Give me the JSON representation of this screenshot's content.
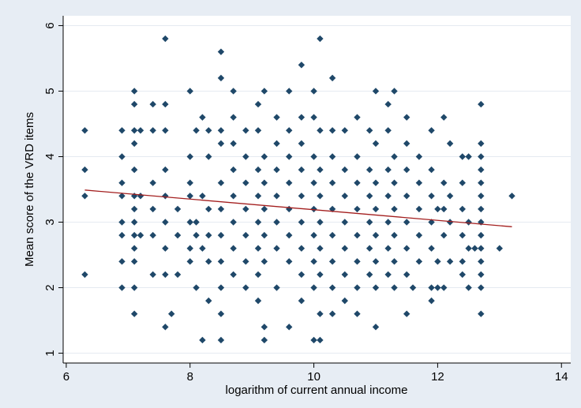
{
  "chart_data": {
    "type": "scatter",
    "title": "",
    "xlabel": "logarithm of current annual income",
    "ylabel": "Mean score of the VRD items",
    "xlim": [
      5.95,
      14.15
    ],
    "ylim": [
      0.85,
      6.15
    ],
    "xticks": [
      6,
      8,
      10,
      12,
      14
    ],
    "yticks": [
      1,
      2,
      3,
      4,
      5,
      6
    ],
    "grid": "horizontal",
    "legend": "none",
    "colors": {
      "background": "#e7edf4",
      "plot_area": "#ffffff",
      "grid": "#e5eaf1",
      "marker": "#1f4869",
      "fit_line": "#a31e1e",
      "axis": "#000000"
    },
    "fit_line": {
      "x": [
        6.3,
        13.2
      ],
      "y": [
        3.49,
        2.93
      ]
    },
    "points": [
      {
        "x": 6.3,
        "y": 4.4
      },
      {
        "x": 6.3,
        "y": 3.8
      },
      {
        "x": 6.3,
        "y": 3.4
      },
      {
        "x": 6.3,
        "y": 2.2
      },
      {
        "x": 6.9,
        "y": 4.4
      },
      {
        "x": 6.9,
        "y": 4.0
      },
      {
        "x": 6.9,
        "y": 3.6
      },
      {
        "x": 6.9,
        "y": 3.4
      },
      {
        "x": 6.9,
        "y": 3.0
      },
      {
        "x": 6.9,
        "y": 2.8
      },
      {
        "x": 6.9,
        "y": 2.4
      },
      {
        "x": 6.9,
        "y": 2.0
      },
      {
        "x": 7.1,
        "y": 5.0
      },
      {
        "x": 7.1,
        "y": 4.8
      },
      {
        "x": 7.1,
        "y": 4.4
      },
      {
        "x": 7.1,
        "y": 4.2
      },
      {
        "x": 7.1,
        "y": 3.8
      },
      {
        "x": 7.1,
        "y": 3.4
      },
      {
        "x": 7.1,
        "y": 3.2
      },
      {
        "x": 7.1,
        "y": 3.0
      },
      {
        "x": 7.1,
        "y": 2.8
      },
      {
        "x": 7.1,
        "y": 2.6
      },
      {
        "x": 7.1,
        "y": 2.4
      },
      {
        "x": 7.1,
        "y": 2.0
      },
      {
        "x": 7.1,
        "y": 1.6
      },
      {
        "x": 7.2,
        "y": 4.4
      },
      {
        "x": 7.2,
        "y": 3.4
      },
      {
        "x": 7.2,
        "y": 2.8
      },
      {
        "x": 7.4,
        "y": 4.8
      },
      {
        "x": 7.4,
        "y": 4.4
      },
      {
        "x": 7.4,
        "y": 3.6
      },
      {
        "x": 7.4,
        "y": 3.2
      },
      {
        "x": 7.4,
        "y": 2.8
      },
      {
        "x": 7.4,
        "y": 2.2
      },
      {
        "x": 7.6,
        "y": 5.8
      },
      {
        "x": 7.6,
        "y": 4.8
      },
      {
        "x": 7.6,
        "y": 4.4
      },
      {
        "x": 7.6,
        "y": 3.8
      },
      {
        "x": 7.6,
        "y": 3.4
      },
      {
        "x": 7.6,
        "y": 3.0
      },
      {
        "x": 7.6,
        "y": 2.6
      },
      {
        "x": 7.6,
        "y": 2.2
      },
      {
        "x": 7.6,
        "y": 1.4
      },
      {
        "x": 7.7,
        "y": 1.6
      },
      {
        "x": 7.8,
        "y": 3.2
      },
      {
        "x": 7.8,
        "y": 2.8
      },
      {
        "x": 7.8,
        "y": 2.2
      },
      {
        "x": 8.0,
        "y": 5.0
      },
      {
        "x": 8.0,
        "y": 4.0
      },
      {
        "x": 8.0,
        "y": 3.6
      },
      {
        "x": 8.0,
        "y": 3.4
      },
      {
        "x": 8.0,
        "y": 3.0
      },
      {
        "x": 8.0,
        "y": 2.6
      },
      {
        "x": 8.0,
        "y": 2.4
      },
      {
        "x": 8.1,
        "y": 4.4
      },
      {
        "x": 8.1,
        "y": 3.0
      },
      {
        "x": 8.1,
        "y": 2.8
      },
      {
        "x": 8.1,
        "y": 2.0
      },
      {
        "x": 8.2,
        "y": 4.6
      },
      {
        "x": 8.2,
        "y": 3.4
      },
      {
        "x": 8.2,
        "y": 2.6
      },
      {
        "x": 8.2,
        "y": 1.2
      },
      {
        "x": 8.3,
        "y": 4.4
      },
      {
        "x": 8.3,
        "y": 4.0
      },
      {
        "x": 8.3,
        "y": 3.2
      },
      {
        "x": 8.3,
        "y": 2.8
      },
      {
        "x": 8.3,
        "y": 2.4
      },
      {
        "x": 8.3,
        "y": 1.8
      },
      {
        "x": 8.5,
        "y": 5.6
      },
      {
        "x": 8.5,
        "y": 5.2
      },
      {
        "x": 8.5,
        "y": 4.4
      },
      {
        "x": 8.5,
        "y": 4.2
      },
      {
        "x": 8.5,
        "y": 3.6
      },
      {
        "x": 8.5,
        "y": 3.2
      },
      {
        "x": 8.5,
        "y": 2.8
      },
      {
        "x": 8.5,
        "y": 2.4
      },
      {
        "x": 8.5,
        "y": 2.0
      },
      {
        "x": 8.5,
        "y": 1.6
      },
      {
        "x": 8.5,
        "y": 1.2
      },
      {
        "x": 8.7,
        "y": 5.0
      },
      {
        "x": 8.7,
        "y": 4.6
      },
      {
        "x": 8.7,
        "y": 4.2
      },
      {
        "x": 8.7,
        "y": 3.8
      },
      {
        "x": 8.7,
        "y": 3.4
      },
      {
        "x": 8.7,
        "y": 3.0
      },
      {
        "x": 8.7,
        "y": 2.6
      },
      {
        "x": 8.7,
        "y": 2.2
      },
      {
        "x": 8.9,
        "y": 4.4
      },
      {
        "x": 8.9,
        "y": 4.0
      },
      {
        "x": 8.9,
        "y": 3.6
      },
      {
        "x": 8.9,
        "y": 3.2
      },
      {
        "x": 8.9,
        "y": 2.8
      },
      {
        "x": 8.9,
        "y": 2.4
      },
      {
        "x": 8.9,
        "y": 2.0
      },
      {
        "x": 9.1,
        "y": 4.8
      },
      {
        "x": 9.1,
        "y": 4.4
      },
      {
        "x": 9.1,
        "y": 3.8
      },
      {
        "x": 9.1,
        "y": 3.4
      },
      {
        "x": 9.1,
        "y": 3.0
      },
      {
        "x": 9.1,
        "y": 2.6
      },
      {
        "x": 9.1,
        "y": 2.2
      },
      {
        "x": 9.1,
        "y": 1.8
      },
      {
        "x": 9.2,
        "y": 5.0
      },
      {
        "x": 9.2,
        "y": 4.0
      },
      {
        "x": 9.2,
        "y": 3.6
      },
      {
        "x": 9.2,
        "y": 3.2
      },
      {
        "x": 9.2,
        "y": 2.8
      },
      {
        "x": 9.2,
        "y": 2.4
      },
      {
        "x": 9.2,
        "y": 1.4
      },
      {
        "x": 9.2,
        "y": 1.2
      },
      {
        "x": 9.4,
        "y": 4.6
      },
      {
        "x": 9.4,
        "y": 4.2
      },
      {
        "x": 9.4,
        "y": 3.8
      },
      {
        "x": 9.4,
        "y": 3.4
      },
      {
        "x": 9.4,
        "y": 3.0
      },
      {
        "x": 9.4,
        "y": 2.6
      },
      {
        "x": 9.4,
        "y": 2.0
      },
      {
        "x": 9.6,
        "y": 5.0
      },
      {
        "x": 9.6,
        "y": 4.4
      },
      {
        "x": 9.6,
        "y": 4.0
      },
      {
        "x": 9.6,
        "y": 3.6
      },
      {
        "x": 9.6,
        "y": 3.2
      },
      {
        "x": 9.6,
        "y": 2.8
      },
      {
        "x": 9.6,
        "y": 2.4
      },
      {
        "x": 9.6,
        "y": 1.4
      },
      {
        "x": 9.8,
        "y": 5.4
      },
      {
        "x": 9.8,
        "y": 4.6
      },
      {
        "x": 9.8,
        "y": 4.2
      },
      {
        "x": 9.8,
        "y": 3.8
      },
      {
        "x": 9.8,
        "y": 3.4
      },
      {
        "x": 9.8,
        "y": 3.0
      },
      {
        "x": 9.8,
        "y": 2.6
      },
      {
        "x": 9.8,
        "y": 2.2
      },
      {
        "x": 9.8,
        "y": 1.8
      },
      {
        "x": 10.0,
        "y": 5.0
      },
      {
        "x": 10.0,
        "y": 4.6
      },
      {
        "x": 10.0,
        "y": 4.0
      },
      {
        "x": 10.0,
        "y": 3.6
      },
      {
        "x": 10.0,
        "y": 3.2
      },
      {
        "x": 10.0,
        "y": 2.8
      },
      {
        "x": 10.0,
        "y": 2.4
      },
      {
        "x": 10.0,
        "y": 2.0
      },
      {
        "x": 10.0,
        "y": 1.2
      },
      {
        "x": 10.1,
        "y": 5.8
      },
      {
        "x": 10.1,
        "y": 4.4
      },
      {
        "x": 10.1,
        "y": 3.8
      },
      {
        "x": 10.1,
        "y": 3.4
      },
      {
        "x": 10.1,
        "y": 3.0
      },
      {
        "x": 10.1,
        "y": 2.6
      },
      {
        "x": 10.1,
        "y": 2.2
      },
      {
        "x": 10.1,
        "y": 1.6
      },
      {
        "x": 10.1,
        "y": 1.2
      },
      {
        "x": 10.3,
        "y": 5.2
      },
      {
        "x": 10.3,
        "y": 4.4
      },
      {
        "x": 10.3,
        "y": 4.0
      },
      {
        "x": 10.3,
        "y": 3.6
      },
      {
        "x": 10.3,
        "y": 3.2
      },
      {
        "x": 10.3,
        "y": 2.8
      },
      {
        "x": 10.3,
        "y": 2.4
      },
      {
        "x": 10.3,
        "y": 2.0
      },
      {
        "x": 10.3,
        "y": 1.6
      },
      {
        "x": 10.5,
        "y": 4.4
      },
      {
        "x": 10.5,
        "y": 3.8
      },
      {
        "x": 10.5,
        "y": 3.4
      },
      {
        "x": 10.5,
        "y": 3.0
      },
      {
        "x": 10.5,
        "y": 2.6
      },
      {
        "x": 10.5,
        "y": 2.2
      },
      {
        "x": 10.5,
        "y": 1.8
      },
      {
        "x": 10.7,
        "y": 4.6
      },
      {
        "x": 10.7,
        "y": 4.0
      },
      {
        "x": 10.7,
        "y": 3.6
      },
      {
        "x": 10.7,
        "y": 3.2
      },
      {
        "x": 10.7,
        "y": 2.8
      },
      {
        "x": 10.7,
        "y": 2.4
      },
      {
        "x": 10.7,
        "y": 2.0
      },
      {
        "x": 10.7,
        "y": 1.6
      },
      {
        "x": 10.9,
        "y": 4.4
      },
      {
        "x": 10.9,
        "y": 3.8
      },
      {
        "x": 10.9,
        "y": 3.4
      },
      {
        "x": 10.9,
        "y": 3.0
      },
      {
        "x": 10.9,
        "y": 2.6
      },
      {
        "x": 10.9,
        "y": 2.2
      },
      {
        "x": 11.0,
        "y": 5.0
      },
      {
        "x": 11.0,
        "y": 4.2
      },
      {
        "x": 11.0,
        "y": 3.6
      },
      {
        "x": 11.0,
        "y": 3.2
      },
      {
        "x": 11.0,
        "y": 2.8
      },
      {
        "x": 11.0,
        "y": 2.4
      },
      {
        "x": 11.0,
        "y": 2.0
      },
      {
        "x": 11.0,
        "y": 1.4
      },
      {
        "x": 11.2,
        "y": 4.8
      },
      {
        "x": 11.2,
        "y": 4.4
      },
      {
        "x": 11.2,
        "y": 3.8
      },
      {
        "x": 11.2,
        "y": 3.4
      },
      {
        "x": 11.2,
        "y": 3.0
      },
      {
        "x": 11.2,
        "y": 2.6
      },
      {
        "x": 11.2,
        "y": 2.2
      },
      {
        "x": 11.3,
        "y": 5.0
      },
      {
        "x": 11.3,
        "y": 4.0
      },
      {
        "x": 11.3,
        "y": 3.6
      },
      {
        "x": 11.3,
        "y": 3.2
      },
      {
        "x": 11.3,
        "y": 2.8
      },
      {
        "x": 11.3,
        "y": 2.4
      },
      {
        "x": 11.3,
        "y": 2.0
      },
      {
        "x": 11.5,
        "y": 4.6
      },
      {
        "x": 11.5,
        "y": 4.2
      },
      {
        "x": 11.5,
        "y": 3.8
      },
      {
        "x": 11.5,
        "y": 3.4
      },
      {
        "x": 11.5,
        "y": 3.0
      },
      {
        "x": 11.5,
        "y": 2.6
      },
      {
        "x": 11.5,
        "y": 2.2
      },
      {
        "x": 11.5,
        "y": 1.6
      },
      {
        "x": 11.6,
        "y": 2.0
      },
      {
        "x": 11.7,
        "y": 4.0
      },
      {
        "x": 11.7,
        "y": 3.6
      },
      {
        "x": 11.7,
        "y": 3.2
      },
      {
        "x": 11.7,
        "y": 2.8
      },
      {
        "x": 11.7,
        "y": 2.4
      },
      {
        "x": 11.9,
        "y": 4.4
      },
      {
        "x": 11.9,
        "y": 3.8
      },
      {
        "x": 11.9,
        "y": 3.4
      },
      {
        "x": 11.9,
        "y": 3.0
      },
      {
        "x": 11.9,
        "y": 2.6
      },
      {
        "x": 11.9,
        "y": 2.0
      },
      {
        "x": 11.9,
        "y": 1.8
      },
      {
        "x": 12.0,
        "y": 3.2
      },
      {
        "x": 12.0,
        "y": 2.4
      },
      {
        "x": 12.0,
        "y": 2.0
      },
      {
        "x": 12.1,
        "y": 4.6
      },
      {
        "x": 12.1,
        "y": 3.6
      },
      {
        "x": 12.1,
        "y": 3.2
      },
      {
        "x": 12.1,
        "y": 2.8
      },
      {
        "x": 12.1,
        "y": 2.0
      },
      {
        "x": 12.2,
        "y": 4.2
      },
      {
        "x": 12.2,
        "y": 3.4
      },
      {
        "x": 12.2,
        "y": 3.0
      },
      {
        "x": 12.2,
        "y": 2.4
      },
      {
        "x": 12.4,
        "y": 4.0
      },
      {
        "x": 12.4,
        "y": 3.6
      },
      {
        "x": 12.4,
        "y": 3.2
      },
      {
        "x": 12.4,
        "y": 2.8
      },
      {
        "x": 12.4,
        "y": 2.4
      },
      {
        "x": 12.4,
        "y": 2.2
      },
      {
        "x": 12.5,
        "y": 4.0
      },
      {
        "x": 12.5,
        "y": 3.0
      },
      {
        "x": 12.5,
        "y": 2.6
      },
      {
        "x": 12.5,
        "y": 2.0
      },
      {
        "x": 12.6,
        "y": 2.6
      },
      {
        "x": 12.7,
        "y": 4.8
      },
      {
        "x": 12.7,
        "y": 4.2
      },
      {
        "x": 12.7,
        "y": 4.0
      },
      {
        "x": 12.7,
        "y": 3.8
      },
      {
        "x": 12.7,
        "y": 3.6
      },
      {
        "x": 12.7,
        "y": 3.4
      },
      {
        "x": 12.7,
        "y": 3.2
      },
      {
        "x": 12.7,
        "y": 3.0
      },
      {
        "x": 12.7,
        "y": 2.8
      },
      {
        "x": 12.7,
        "y": 2.6
      },
      {
        "x": 12.7,
        "y": 2.4
      },
      {
        "x": 12.7,
        "y": 2.2
      },
      {
        "x": 12.7,
        "y": 2.0
      },
      {
        "x": 12.7,
        "y": 1.6
      },
      {
        "x": 13.0,
        "y": 2.6
      },
      {
        "x": 13.2,
        "y": 3.4
      }
    ]
  }
}
